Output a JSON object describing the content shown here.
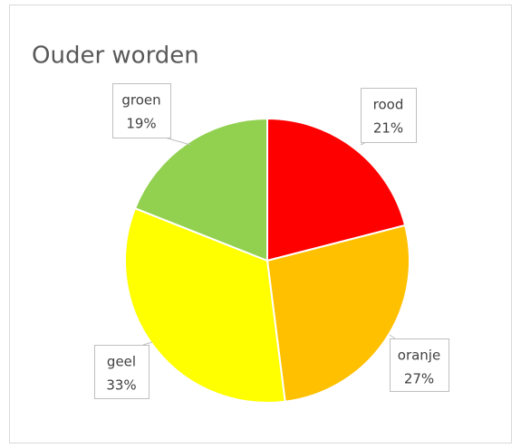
{
  "chart_data": {
    "type": "pie",
    "title": "Ouder worden",
    "categories": [
      "rood",
      "oranje",
      "geel",
      "groen"
    ],
    "values": [
      21,
      27,
      33,
      19
    ],
    "value_labels": [
      "21%",
      "27%",
      "33%",
      "19%"
    ],
    "colors": [
      "#ff0000",
      "#ffc000",
      "#ffff00",
      "#92d050"
    ]
  }
}
